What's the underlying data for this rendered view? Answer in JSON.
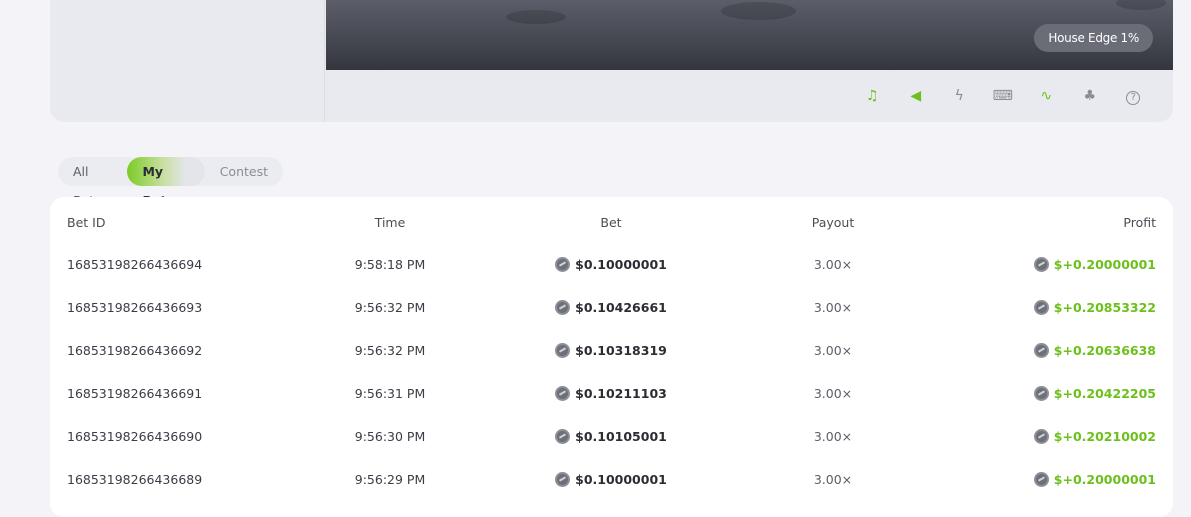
{
  "game": {
    "house_edge": "House Edge 1%"
  },
  "toolbar": [
    {
      "icon": "music-icon",
      "glyph": "♫",
      "color": "#6cc01c"
    },
    {
      "icon": "sound-icon",
      "glyph": "◀",
      "color": "#6cc01c"
    },
    {
      "icon": "lightning-icon",
      "glyph": "ϟ",
      "color": "#8a8d95"
    },
    {
      "icon": "keyboard-icon",
      "glyph": "⌨",
      "color": "#8a8d95"
    },
    {
      "icon": "path-icon",
      "glyph": "∿",
      "color": "#6cc01c"
    },
    {
      "icon": "acorn-icon",
      "glyph": "♣",
      "color": "#8a8d95"
    },
    {
      "icon": "help-icon",
      "glyph": "?",
      "color": "#8a8d95"
    }
  ],
  "tabs": [
    "All Bets",
    "My Bets",
    "Contest"
  ],
  "active_tab": "My Bets",
  "table": {
    "headers": {
      "id": "Bet ID",
      "time": "Time",
      "bet": "Bet",
      "payout": "Payout",
      "profit": "Profit"
    },
    "rows": [
      {
        "id": "16853198266436694",
        "time": "9:58:18 PM",
        "bet": "$0.10000001",
        "payout": "3.00×",
        "profit": "$+0.20000001"
      },
      {
        "id": "16853198266436693",
        "time": "9:56:32 PM",
        "bet": "$0.10426661",
        "payout": "3.00×",
        "profit": "$+0.20853322"
      },
      {
        "id": "16853198266436692",
        "time": "9:56:32 PM",
        "bet": "$0.10318319",
        "payout": "3.00×",
        "profit": "$+0.20636638"
      },
      {
        "id": "16853198266436691",
        "time": "9:56:31 PM",
        "bet": "$0.10211103",
        "payout": "3.00×",
        "profit": "$+0.20422205"
      },
      {
        "id": "16853198266436690",
        "time": "9:56:30 PM",
        "bet": "$0.10105001",
        "payout": "3.00×",
        "profit": "$+0.20210002"
      },
      {
        "id": "16853198266436689",
        "time": "9:56:29 PM",
        "bet": "$0.10000001",
        "payout": "3.00×",
        "profit": "$+0.20000001"
      }
    ]
  }
}
